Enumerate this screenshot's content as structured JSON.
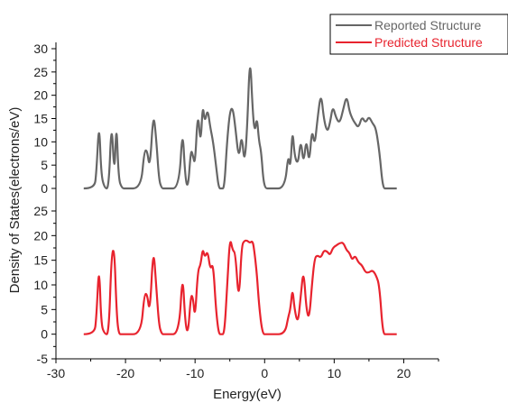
{
  "chart_data": {
    "type": "line",
    "xlabel": "Energy(eV)",
    "ylabel": "Density of States(electrons/eV)",
    "xlim": [
      -30,
      25
    ],
    "x_ticks": [
      "-30",
      "-20",
      "-10",
      "0",
      "10",
      "20"
    ],
    "x_tick_values": [
      -30,
      -20,
      -10,
      0,
      10,
      20
    ],
    "y_ticks_lower": [
      "-5",
      "0",
      "5",
      "10",
      "15",
      "20",
      "25"
    ],
    "y_ticks_upper": [
      "0",
      "5",
      "10",
      "15",
      "20",
      "25",
      "30"
    ],
    "legend_position": "top-right",
    "series": [
      {
        "name": "Reported Structure",
        "color": "#666666",
        "panel": "upper",
        "ylim": [
          0,
          30
        ],
        "x": [
          -26.0,
          -24.5,
          -24.2,
          -23.8,
          -23.5,
          -23.0,
          -22.4,
          -22.0,
          -21.6,
          -21.3,
          -21.0,
          -20.5,
          -20.0,
          -17.8,
          -17.3,
          -16.9,
          -16.5,
          -16.0,
          -15.6,
          -15.2,
          -14.8,
          -14.4,
          -14.0,
          -12.3,
          -11.8,
          -11.4,
          -11.0,
          -10.6,
          -10.3,
          -10.0,
          -9.6,
          -9.2,
          -8.9,
          -8.6,
          -8.2,
          -7.8,
          -7.4,
          -7.0,
          -6.6,
          -6.2,
          -5.8,
          -5.4,
          -5.0,
          -4.6,
          -4.2,
          -3.7,
          -3.3,
          -2.9,
          -2.5,
          -2.1,
          -1.7,
          -1.4,
          -1.1,
          -0.8,
          -0.5,
          -0.2,
          0.1,
          0.6,
          1.0,
          2.9,
          3.4,
          3.7,
          4.0,
          4.3,
          4.8,
          5.2,
          5.6,
          6.0,
          6.4,
          6.8,
          7.2,
          7.6,
          8.1,
          8.5,
          9.0,
          9.4,
          9.8,
          10.3,
          10.8,
          11.3,
          11.8,
          12.2,
          12.6,
          13.0,
          13.5,
          14.0,
          14.5,
          15.0,
          15.5,
          16.0,
          16.5,
          17.0,
          17.5,
          18.0,
          19.0
        ],
        "values": [
          0,
          0,
          3.0,
          14.8,
          3.0,
          0,
          0,
          15.2,
          2.0,
          15.0,
          2.0,
          0,
          0,
          0,
          8.0,
          8.3,
          4.0,
          16.5,
          11.0,
          2.0,
          0,
          0,
          0,
          0,
          13.5,
          2.0,
          0,
          8.5,
          7.0,
          5.0,
          17.0,
          9.0,
          18.3,
          14.0,
          17.2,
          13.0,
          10.0,
          5.0,
          0,
          0,
          0,
          10.0,
          16.5,
          17.5,
          13.0,
          6.0,
          12.0,
          5.0,
          13.0,
          29.5,
          16.0,
          12.0,
          15.5,
          10.0,
          8.0,
          2.0,
          0,
          0,
          0,
          0,
          7.5,
          4.0,
          13.0,
          7.0,
          5.0,
          10.8,
          5.0,
          11.0,
          5.0,
          13.0,
          9.0,
          15.0,
          20.7,
          15.0,
          12.0,
          14.0,
          17.8,
          15.0,
          14.0,
          17.0,
          20.0,
          16.5,
          15.0,
          14.0,
          13.0,
          15.5,
          14.0,
          15.5,
          14.0,
          13.0,
          8.0,
          0,
          0,
          0,
          0
        ]
      },
      {
        "name": "Predicted Structure",
        "color": "#e8232e",
        "panel": "lower",
        "ylim": [
          -5,
          25
        ],
        "x": [
          -26.0,
          -24.5,
          -24.2,
          -23.8,
          -23.5,
          -23.0,
          -22.4,
          -22.0,
          -21.6,
          -21.3,
          -21.0,
          -20.5,
          -20.0,
          -17.8,
          -17.3,
          -16.9,
          -16.5,
          -16.0,
          -15.6,
          -15.2,
          -14.8,
          -14.4,
          -14.0,
          -12.3,
          -11.8,
          -11.4,
          -11.0,
          -10.6,
          -10.3,
          -10.0,
          -9.6,
          -9.2,
          -8.9,
          -8.6,
          -8.2,
          -7.8,
          -7.4,
          -7.0,
          -6.6,
          -6.2,
          -5.8,
          -5.4,
          -5.0,
          -4.6,
          -4.2,
          -3.7,
          -3.3,
          -2.9,
          -2.5,
          -2.1,
          -1.7,
          -1.4,
          -1.1,
          -0.8,
          -0.5,
          -0.2,
          0.1,
          0.6,
          1.0,
          2.9,
          3.4,
          3.7,
          4.0,
          4.3,
          4.8,
          5.2,
          5.6,
          6.0,
          6.4,
          6.8,
          7.2,
          7.6,
          8.1,
          8.5,
          9.0,
          9.4,
          9.8,
          10.3,
          10.8,
          11.3,
          11.8,
          12.2,
          12.6,
          13.0,
          13.5,
          14.0,
          14.5,
          15.0,
          15.5,
          16.0,
          16.5,
          17.0,
          17.5,
          18.0,
          19.0
        ],
        "values": [
          0,
          0,
          3.0,
          14.8,
          2.0,
          0,
          0,
          16.5,
          17.3,
          5.0,
          0,
          0,
          0,
          0,
          8.0,
          8.3,
          4.0,
          18.0,
          10.0,
          2.0,
          0,
          0,
          0,
          0,
          13.0,
          2.0,
          0,
          8.0,
          7.5,
          3.0,
          13.0,
          14.0,
          17.5,
          15.5,
          17.0,
          13.0,
          14.5,
          5.0,
          0,
          0,
          0,
          9.0,
          19.8,
          17.0,
          16.5,
          6.0,
          18.0,
          19.0,
          19.0,
          18.5,
          19.0,
          16.0,
          12.0,
          6.0,
          2.0,
          0,
          0,
          0,
          0,
          0,
          3.5,
          5.0,
          9.5,
          5.0,
          2.0,
          8.0,
          13.3,
          5.0,
          3.0,
          10.0,
          15.5,
          16.0,
          15.5,
          17.0,
          16.8,
          16.0,
          17.5,
          18.0,
          18.5,
          18.6,
          17.0,
          16.5,
          15.0,
          16.0,
          14.5,
          14.0,
          12.5,
          12.5,
          13.0,
          12.0,
          10.0,
          0,
          0,
          0,
          0
        ]
      }
    ]
  }
}
